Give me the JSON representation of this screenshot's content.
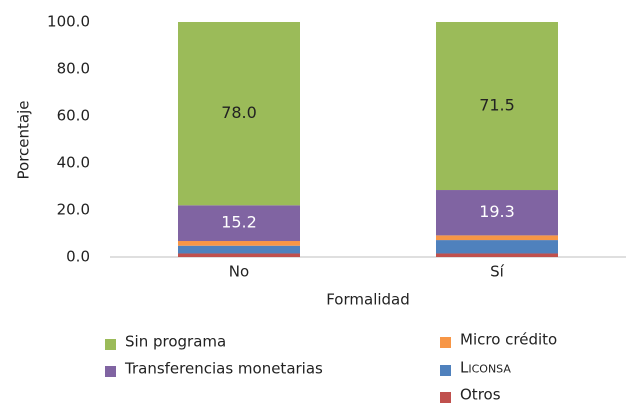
{
  "chart_data": {
    "type": "stacked_bar",
    "categories": [
      "No",
      "Sí"
    ],
    "series": [
      {
        "name": "Otros",
        "color": "#c0504d",
        "values": [
          1.5,
          1.5
        ]
      },
      {
        "name": "Liconsa",
        "color": "#4f81bd",
        "values": [
          3.3,
          5.7
        ]
      },
      {
        "name": "Micro crédito",
        "color": "#f79646",
        "values": [
          2.0,
          2.0
        ]
      },
      {
        "name": "Transferencias monetarias",
        "color": "#8064a2",
        "values": [
          15.2,
          19.3
        ],
        "value_labels": [
          null,
          null
        ]
      },
      {
        "name": "Sin programa",
        "color": "#9bbb59",
        "values": [
          78.0,
          71.5
        ],
        "value_labels": [
          "78.0",
          "71.5"
        ]
      }
    ],
    "ylim": [
      0,
      100
    ],
    "yticks": [
      {
        "value": 0,
        "label": "0.0"
      },
      {
        "value": 20,
        "label": "20.0"
      },
      {
        "value": 40,
        "label": "40.0"
      },
      {
        "value": 60,
        "label": "60.0"
      },
      {
        "value": 80,
        "label": "80.0"
      },
      {
        "value": 100,
        "label": "100.0"
      }
    ],
    "xlabel": "Formalidad",
    "ylabel": "Porcentaje"
  }
}
